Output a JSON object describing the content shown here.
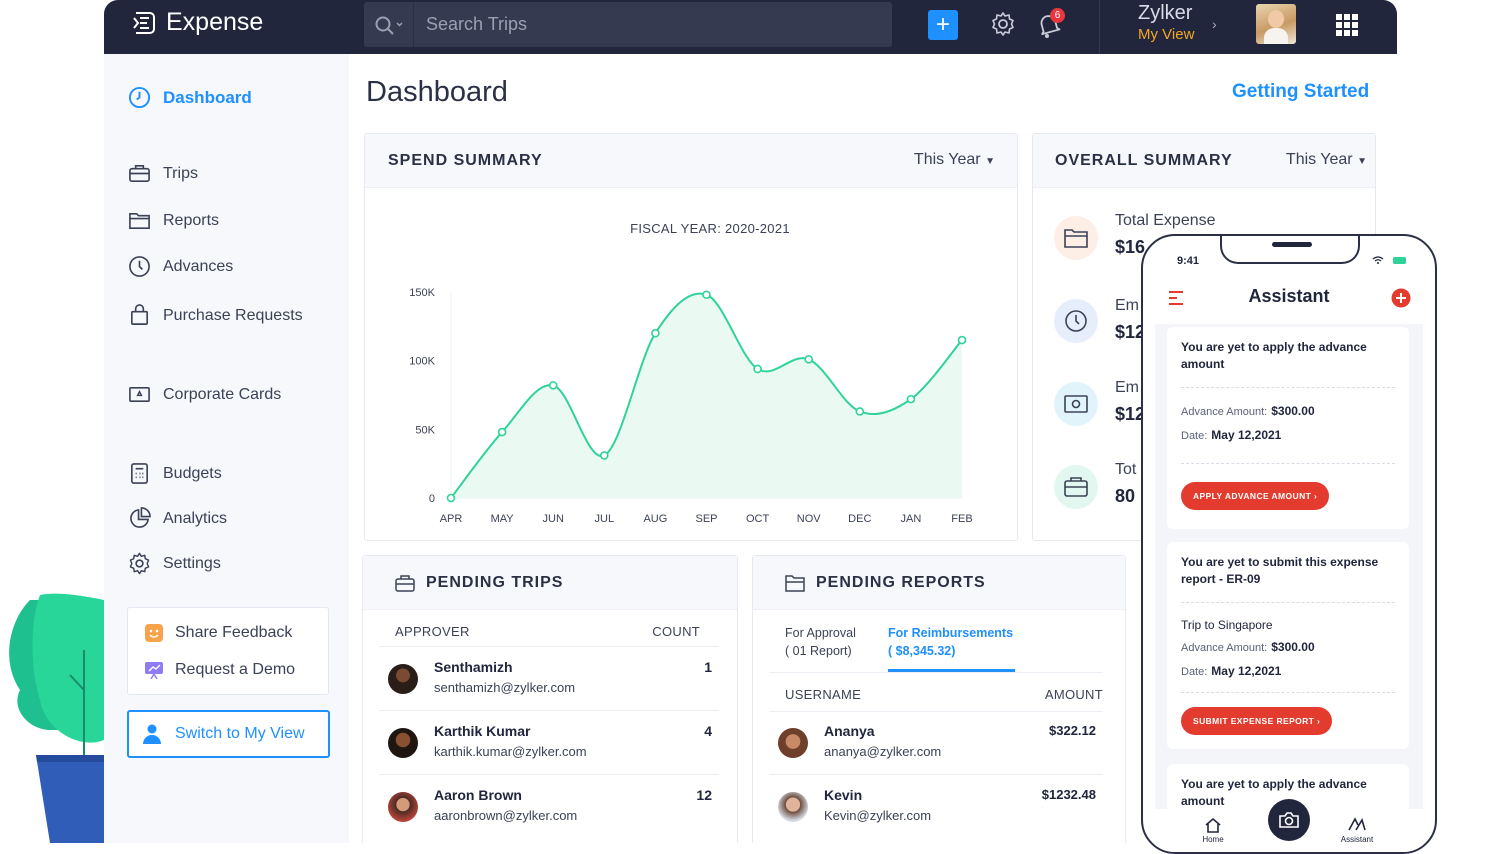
{
  "header": {
    "app_name": "Expense",
    "search_placeholder": "Search Trips",
    "notification_count": "6",
    "org_name": "Zylker",
    "org_view": "My View"
  },
  "sidebar": {
    "items": [
      {
        "label": "Dashboard",
        "icon": "dashboard-icon"
      },
      {
        "label": "Trips",
        "icon": "briefcase-icon"
      },
      {
        "label": "Reports",
        "icon": "folder-icon"
      },
      {
        "label": "Advances",
        "icon": "clock-icon"
      },
      {
        "label": "Purchase Requests",
        "icon": "bag-icon"
      },
      {
        "label": "Corporate Cards",
        "icon": "card-icon"
      },
      {
        "label": "Budgets",
        "icon": "calculator-icon"
      },
      {
        "label": "Analytics",
        "icon": "pie-chart-icon"
      },
      {
        "label": "Settings",
        "icon": "gear-icon"
      }
    ],
    "share_feedback": "Share Feedback",
    "request_demo": "Request a Demo",
    "switch_view": "Switch to My View"
  },
  "main": {
    "title": "Dashboard",
    "getting_started": "Getting Started"
  },
  "spend_summary": {
    "title": "SPEND SUMMARY",
    "period": "This Year"
  },
  "chart_data": {
    "type": "area",
    "title": "FISCAL YEAR: 2020-2021",
    "categories": [
      "APR",
      "MAY",
      "JUN",
      "JUL",
      "AUG",
      "SEP",
      "OCT",
      "NOV",
      "DEC",
      "JAN",
      "FEB"
    ],
    "values": [
      0,
      48000,
      82000,
      31000,
      120000,
      148000,
      94000,
      101000,
      63000,
      72000,
      115000
    ],
    "y_ticks": [
      "0",
      "50K",
      "100K",
      "150K"
    ],
    "ylim": [
      0,
      150000
    ],
    "color": "#2fd39a",
    "fill": "#eafaf3",
    "grid": false
  },
  "overall_summary": {
    "title": "OVERALL SUMMARY",
    "period": "This Year",
    "items": [
      {
        "label": "Total Expense",
        "value": "$16",
        "icon": "folder-icon",
        "bg": "#fdeee6"
      },
      {
        "label": "Em",
        "value": "$12",
        "icon": "clock-icon",
        "bg": "#e6eefc"
      },
      {
        "label": "Em",
        "value": "$12",
        "icon": "money-icon",
        "bg": "#e2f4fb"
      },
      {
        "label": "Tot",
        "value": "80",
        "icon": "briefcase-icon",
        "bg": "#e2f7ef"
      }
    ]
  },
  "pending_trips": {
    "title": "PENDING TRIPS",
    "col_approver": "APPROVER",
    "col_count": "COUNT",
    "rows": [
      {
        "name": "Senthamizh",
        "email": "senthamizh@zylker.com",
        "count": "1"
      },
      {
        "name": "Karthik Kumar",
        "email": "karthik.kumar@zylker.com",
        "count": "4"
      },
      {
        "name": "Aaron Brown",
        "email": "aaronbrown@zylker.com",
        "count": "12"
      }
    ]
  },
  "pending_reports": {
    "title": "PENDING REPORTS",
    "tab_approval": "For Approval",
    "tab_approval_sub": "( 01 Report)",
    "tab_reimb": "For Reimbursements",
    "tab_reimb_sub": "( $8,345.32)",
    "col_user": "USERNAME",
    "col_amount": "AMOUNT",
    "rows": [
      {
        "name": "Ananya",
        "email": "ananya@zylker.com",
        "amount": "$322.12"
      },
      {
        "name": "Kevin",
        "email": "Kevin@zylker.com",
        "amount": "$1232.48"
      }
    ]
  },
  "phone": {
    "time": "9:41",
    "title": "Assistant",
    "card1": {
      "heading": "You are yet to apply the advance amount",
      "amount_label": "Advance Amount:",
      "amount": "$300.00",
      "date_label": "Date:",
      "date": "May 12,2021",
      "button": "APPLY ADVANCE AMOUNT"
    },
    "card2": {
      "heading": "You are yet to submit this expense report - ER-09",
      "trip": "Trip to Singapore",
      "amount_label": "Advance Amount:",
      "amount": "$300.00",
      "date_label": "Date:",
      "date": "May 12,2021",
      "button": "SUBMIT EXPENSE REPORT"
    },
    "card3": {
      "heading": "You are yet to apply the advance amount"
    },
    "tab_home": "Home",
    "tab_assistant": "Assistant"
  }
}
